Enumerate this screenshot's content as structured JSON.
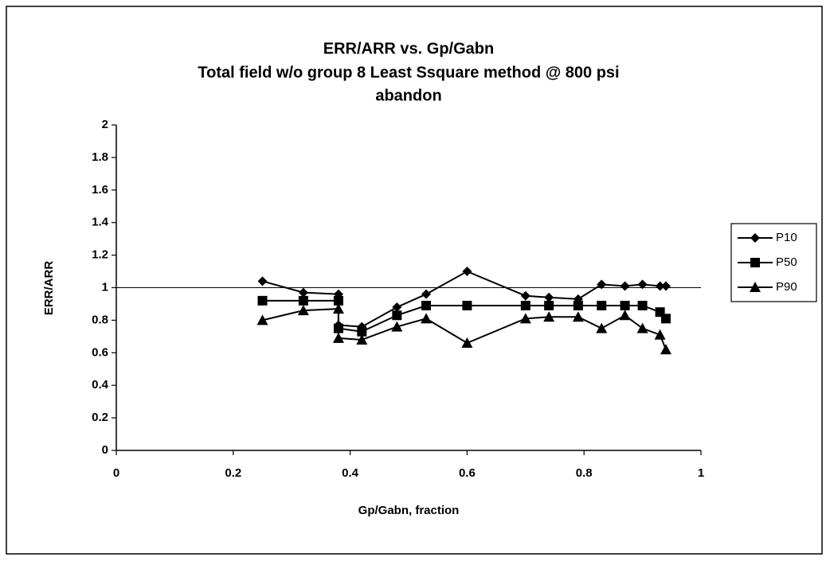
{
  "chart_data": {
    "type": "line",
    "title": [
      "ERR/ARR vs. Gp/Gabn",
      "Total field w/o group 8 Least Ssquare method @ 800 psi",
      "abandon"
    ],
    "x_label": "Gp/Gabn, fraction",
    "y_label": "ERR/ARR",
    "x": [
      0.25,
      0.32,
      0.38,
      0.38,
      0.42,
      0.48,
      0.53,
      0.6,
      0.7,
      0.74,
      0.79,
      0.83,
      0.87,
      0.9,
      0.93,
      0.94
    ],
    "series": [
      {
        "name": "P10",
        "color": "#000000",
        "marker": "diamond",
        "values": [
          1.04,
          0.97,
          0.96,
          0.77,
          0.76,
          0.88,
          0.96,
          1.1,
          0.95,
          0.94,
          0.93,
          1.02,
          1.01,
          1.02,
          1.01,
          1.01
        ]
      },
      {
        "name": "P50",
        "color": "#000000",
        "marker": "square",
        "values": [
          0.92,
          0.92,
          0.92,
          0.75,
          0.73,
          0.83,
          0.89,
          0.89,
          0.89,
          0.89,
          0.89,
          0.89,
          0.89,
          0.89,
          0.85,
          0.81
        ]
      },
      {
        "name": "P90",
        "color": "#000000",
        "marker": "triangle",
        "values": [
          0.8,
          0.86,
          0.87,
          0.69,
          0.68,
          0.76,
          0.81,
          0.66,
          0.81,
          0.82,
          0.82,
          0.75,
          0.83,
          0.75,
          0.71,
          0.62
        ]
      }
    ],
    "reference_line": 1,
    "xlim": [
      0,
      1
    ],
    "xticks": [
      0,
      0.2,
      0.4,
      0.6,
      0.8,
      1
    ],
    "ylim": [
      0,
      2
    ],
    "yticks": [
      0,
      0.2,
      0.4,
      0.6,
      0.8,
      1,
      1.2,
      1.4,
      1.6,
      1.8,
      2
    ],
    "legend": "right"
  }
}
